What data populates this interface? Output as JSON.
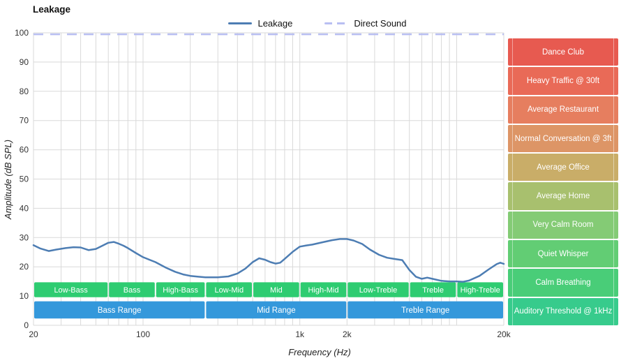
{
  "chart_data": {
    "type": "line",
    "title": "Leakage",
    "xlabel": "Frequency (Hz)",
    "ylabel": "Amplitude (dB SPL)",
    "x_scale": "log",
    "xlim": [
      20,
      20000
    ],
    "ylim": [
      0,
      100
    ],
    "grid": true,
    "legend_position": "top",
    "y_ticks": [
      0,
      10,
      20,
      30,
      40,
      50,
      60,
      70,
      80,
      90,
      100
    ],
    "x_ticks": [
      {
        "value": 20,
        "label": "20"
      },
      {
        "value": 100,
        "label": "100"
      },
      {
        "value": 1000,
        "label": "1k"
      },
      {
        "value": 2000,
        "label": "2k"
      },
      {
        "value": 20000,
        "label": "20k"
      }
    ],
    "series": [
      {
        "name": "Leakage",
        "type": "line",
        "color": "#4d7db3",
        "dash": false,
        "points": [
          [
            20,
            27.4
          ],
          [
            22,
            26.3
          ],
          [
            25,
            25.4
          ],
          [
            28,
            25.9
          ],
          [
            32,
            26.4
          ],
          [
            36,
            26.7
          ],
          [
            40,
            26.6
          ],
          [
            45,
            25.7
          ],
          [
            50,
            26.1
          ],
          [
            55,
            27.2
          ],
          [
            60,
            28.2
          ],
          [
            65,
            28.5
          ],
          [
            70,
            27.9
          ],
          [
            75,
            27.2
          ],
          [
            80,
            26.4
          ],
          [
            90,
            24.7
          ],
          [
            100,
            23.3
          ],
          [
            110,
            22.4
          ],
          [
            120,
            21.6
          ],
          [
            140,
            19.7
          ],
          [
            160,
            18.3
          ],
          [
            180,
            17.4
          ],
          [
            200,
            16.9
          ],
          [
            225,
            16.6
          ],
          [
            250,
            16.4
          ],
          [
            300,
            16.4
          ],
          [
            350,
            16.7
          ],
          [
            400,
            17.7
          ],
          [
            450,
            19.4
          ],
          [
            500,
            21.6
          ],
          [
            550,
            22.9
          ],
          [
            600,
            22.4
          ],
          [
            650,
            21.6
          ],
          [
            700,
            21.1
          ],
          [
            750,
            21.4
          ],
          [
            800,
            22.7
          ],
          [
            900,
            25.1
          ],
          [
            1000,
            26.9
          ],
          [
            1100,
            27.3
          ],
          [
            1200,
            27.6
          ],
          [
            1400,
            28.4
          ],
          [
            1600,
            29.1
          ],
          [
            1800,
            29.5
          ],
          [
            2000,
            29.5
          ],
          [
            2200,
            29.0
          ],
          [
            2500,
            27.8
          ],
          [
            2800,
            25.9
          ],
          [
            3200,
            24.1
          ],
          [
            3600,
            23.1
          ],
          [
            4000,
            22.7
          ],
          [
            4500,
            22.3
          ],
          [
            5000,
            18.9
          ],
          [
            5500,
            16.6
          ],
          [
            6000,
            15.9
          ],
          [
            6500,
            16.3
          ],
          [
            7000,
            15.9
          ],
          [
            8000,
            15.2
          ],
          [
            9000,
            15.0
          ],
          [
            10000,
            15.0
          ],
          [
            11000,
            14.9
          ],
          [
            12000,
            15.3
          ],
          [
            14000,
            16.9
          ],
          [
            16000,
            19.1
          ],
          [
            18000,
            20.9
          ],
          [
            19000,
            21.4
          ],
          [
            20000,
            21.0
          ]
        ]
      },
      {
        "name": "Direct Sound",
        "type": "hline",
        "color": "#b9bff2",
        "dash": true,
        "value": 99.5
      }
    ],
    "frequency_bands": {
      "color": "#2ecc71",
      "db_range": [
        9.6,
        14.7
      ],
      "segments": [
        {
          "label": "Low-Bass",
          "from": 20,
          "to": 60
        },
        {
          "label": "Bass",
          "from": 60,
          "to": 120
        },
        {
          "label": "High-Bass",
          "from": 120,
          "to": 250
        },
        {
          "label": "Low-Mid",
          "from": 250,
          "to": 500
        },
        {
          "label": "Mid",
          "from": 500,
          "to": 1000
        },
        {
          "label": "High-Mid",
          "from": 1000,
          "to": 2000
        },
        {
          "label": "Low-Treble",
          "from": 2000,
          "to": 5000
        },
        {
          "label": "Treble",
          "from": 5000,
          "to": 10000
        },
        {
          "label": "High-Treble",
          "from": 10000,
          "to": 20000
        }
      ]
    },
    "range_bands": {
      "color": "#3498db",
      "db_range": [
        2.3,
        8.2
      ],
      "segments": [
        {
          "label": "Bass Range",
          "from": 20,
          "to": 250
        },
        {
          "label": "Mid Range",
          "from": 250,
          "to": 2000
        },
        {
          "label": "Treble Range",
          "from": 2000,
          "to": 20000
        }
      ]
    },
    "loudness_scale": [
      {
        "label": "Dance Club",
        "color": "#e75a50"
      },
      {
        "label": "Heavy Traffic @ 30ft",
        "color": "#e96a57"
      },
      {
        "label": "Average Restaurant",
        "color": "#e67e5f"
      },
      {
        "label": "Normal Conversation @ 3ft",
        "color": "#dd9566"
      },
      {
        "label": "Average Office",
        "color": "#c9ad68"
      },
      {
        "label": "Average Home",
        "color": "#a8c06e"
      },
      {
        "label": "Very Calm Room",
        "color": "#84cb75"
      },
      {
        "label": "Quiet Whisper",
        "color": "#62cd74"
      },
      {
        "label": "Calm Breathing",
        "color": "#49cd78"
      },
      {
        "label": "Auditory Threshold @ 1kHz",
        "color": "#37cb8c"
      }
    ]
  }
}
